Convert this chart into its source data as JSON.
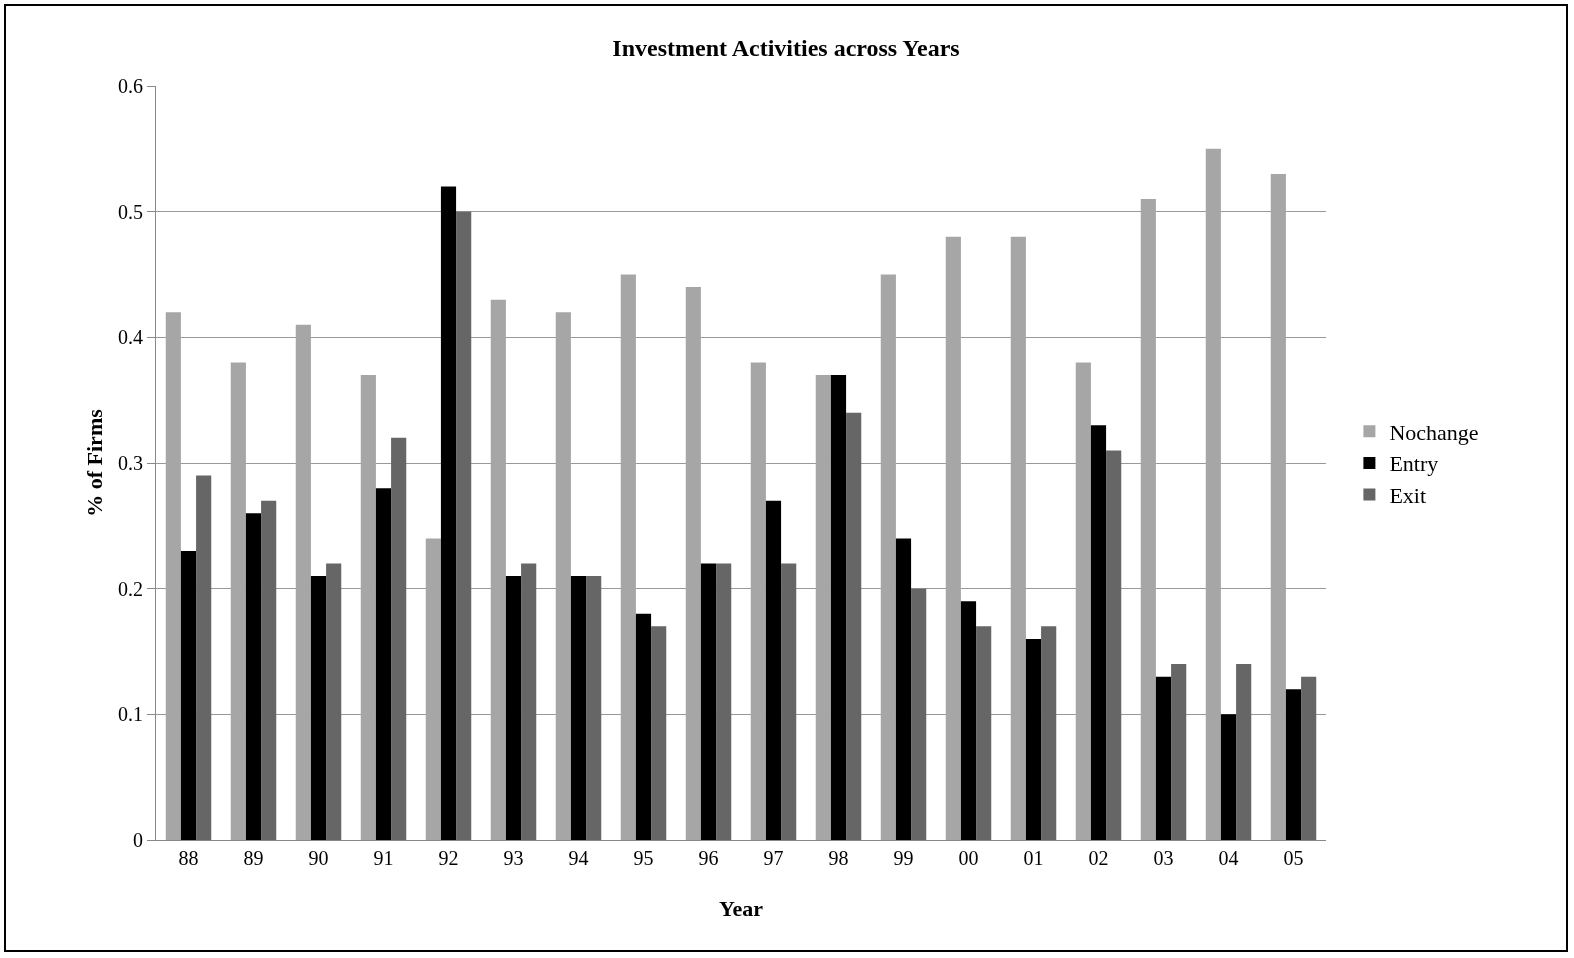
{
  "chart_data": {
    "type": "bar",
    "title": "Investment Activities across Years",
    "xlabel": "Year",
    "ylabel": "% of Firms",
    "categories": [
      "88",
      "89",
      "90",
      "91",
      "92",
      "93",
      "94",
      "95",
      "96",
      "97",
      "98",
      "99",
      "00",
      "01",
      "02",
      "03",
      "04",
      "05"
    ],
    "series": [
      {
        "name": "Nochange",
        "color": "#a6a6a6",
        "values": [
          0.42,
          0.38,
          0.41,
          0.37,
          0.24,
          0.43,
          0.42,
          0.45,
          0.44,
          0.38,
          0.37,
          0.45,
          0.48,
          0.48,
          0.38,
          0.51,
          0.55,
          0.53
        ]
      },
      {
        "name": "Entry",
        "color": "#000000",
        "values": [
          0.23,
          0.26,
          0.21,
          0.28,
          0.52,
          0.21,
          0.21,
          0.18,
          0.22,
          0.27,
          0.37,
          0.24,
          0.19,
          0.16,
          0.33,
          0.13,
          0.1,
          0.12
        ]
      },
      {
        "name": "Exit",
        "color": "#666666",
        "values": [
          0.29,
          0.27,
          0.22,
          0.32,
          0.5,
          0.22,
          0.21,
          0.17,
          0.22,
          0.22,
          0.34,
          0.2,
          0.17,
          0.17,
          0.31,
          0.14,
          0.14,
          0.13
        ]
      }
    ],
    "ylim": [
      0,
      0.6
    ],
    "yticks": [
      0,
      0.1,
      0.2,
      0.3,
      0.4,
      0.5,
      0.6
    ],
    "grid": "y",
    "legend": "right"
  }
}
